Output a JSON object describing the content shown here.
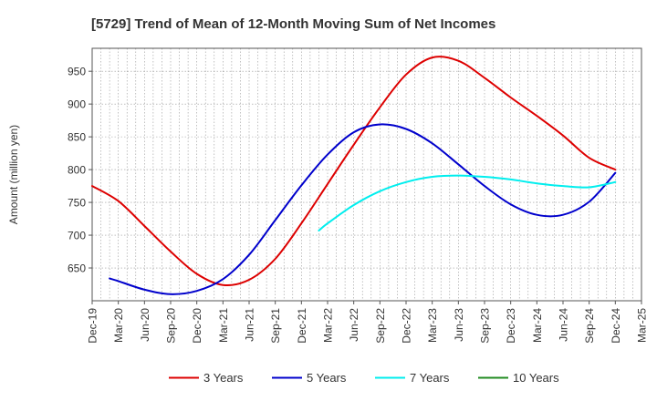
{
  "chart_data": {
    "type": "line",
    "title": "[5729]  Trend of Mean of 12-Month Moving Sum of Net Incomes",
    "ylabel": "Amount (million yen)",
    "xlabel": "",
    "ylim": [
      600,
      985
    ],
    "yticks": [
      650,
      700,
      750,
      800,
      850,
      900,
      950
    ],
    "x_tick_labels": [
      "Dec-19",
      "Mar-20",
      "Jun-20",
      "Sep-20",
      "Dec-20",
      "Mar-21",
      "Jun-21",
      "Sep-21",
      "Dec-21",
      "Mar-22",
      "Jun-22",
      "Sep-22",
      "Dec-22",
      "Mar-23",
      "Jun-23",
      "Sep-23",
      "Dec-23",
      "Mar-24",
      "Jun-24",
      "Sep-24",
      "Dec-24",
      "Mar-25"
    ],
    "grid": true,
    "legend_position": "bottom",
    "series": [
      {
        "name": "3 Years",
        "color": "#dd0000",
        "x": [
          "Dec-19",
          "Mar-20",
          "Jun-20",
          "Sep-20",
          "Dec-20",
          "Mar-21",
          "Jun-21",
          "Sep-21",
          "Dec-21",
          "Mar-22",
          "Jun-22",
          "Sep-22",
          "Dec-22",
          "Mar-23",
          "Jun-23",
          "Sep-23",
          "Dec-23",
          "Mar-24",
          "Jun-24",
          "Sep-24",
          "Dec-24"
        ],
        "values": [
          775,
          752,
          714,
          675,
          641,
          624,
          632,
          664,
          718,
          778,
          838,
          895,
          945,
          971,
          966,
          940,
          910,
          882,
          852,
          818,
          800
        ]
      },
      {
        "name": "5 Years",
        "color": "#0000cc",
        "x": [
          "Feb-20",
          "Mar-20",
          "Jun-20",
          "Sep-20",
          "Dec-20",
          "Mar-21",
          "Jun-21",
          "Sep-21",
          "Dec-21",
          "Mar-22",
          "Jun-22",
          "Sep-22",
          "Dec-22",
          "Mar-23",
          "Jun-23",
          "Sep-23",
          "Dec-23",
          "Mar-24",
          "Jun-24",
          "Sep-24",
          "Dec-24"
        ],
        "values": [
          634,
          630,
          617,
          610,
          615,
          633,
          670,
          723,
          776,
          823,
          857,
          869,
          862,
          840,
          808,
          775,
          747,
          731,
          731,
          751,
          795
        ]
      },
      {
        "name": "7 Years",
        "color": "#00eeee",
        "x": [
          "Feb-22",
          "Mar-22",
          "Jun-22",
          "Sep-22",
          "Dec-22",
          "Mar-23",
          "Jun-23",
          "Sep-23",
          "Dec-23",
          "Mar-24",
          "Jun-24",
          "Sep-24",
          "Dec-24"
        ],
        "values": [
          707,
          718,
          746,
          767,
          781,
          789,
          791,
          789,
          785,
          779,
          775,
          773,
          781
        ]
      },
      {
        "name": "10 Years",
        "color": "#228b22",
        "x": [],
        "values": []
      }
    ]
  }
}
